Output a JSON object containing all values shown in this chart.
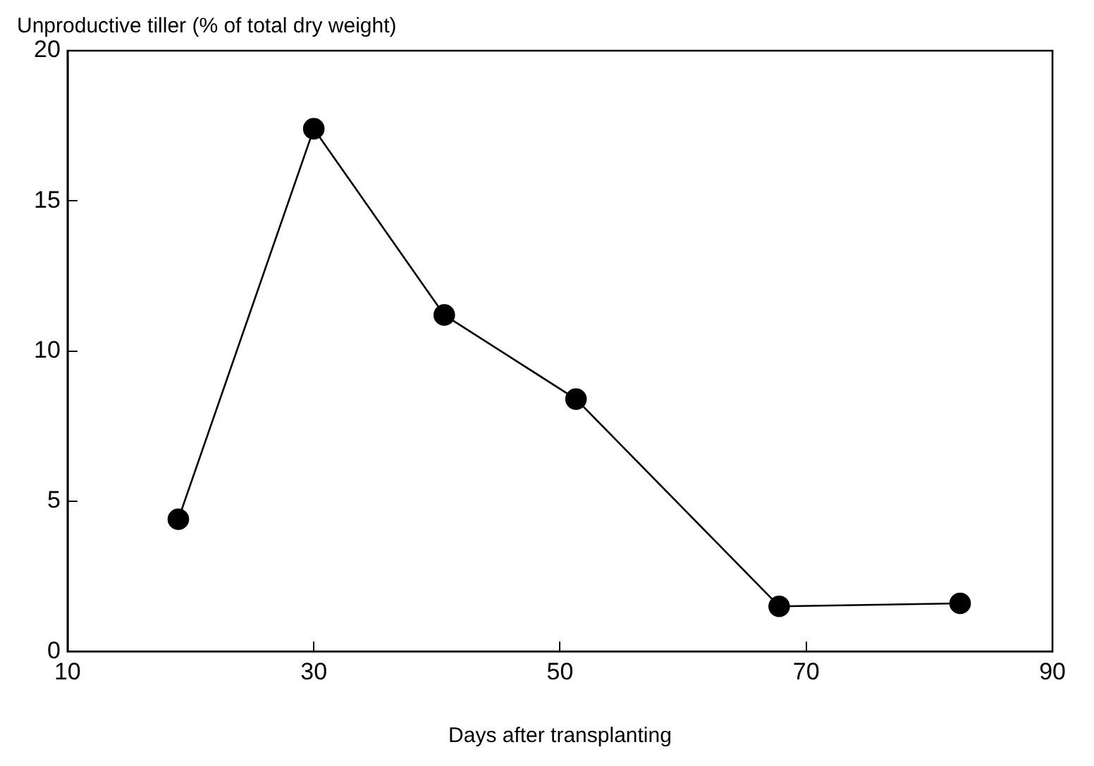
{
  "chart_data": {
    "type": "line",
    "ylabel": "Unproductive tiller (% of total dry weight)",
    "xlabel": "Days after transplanting",
    "x": [
      19,
      30,
      40.6,
      51.3,
      67.8,
      82.5
    ],
    "series": [
      {
        "color": "#000000",
        "values": [
          4.4,
          17.4,
          11.2,
          8.4,
          1.5,
          1.6
        ]
      }
    ],
    "xlim": [
      10,
      90
    ],
    "xticks": [
      10,
      30,
      50,
      70,
      90
    ],
    "ylim": [
      0,
      20
    ],
    "yticks": [
      0,
      5,
      10,
      15,
      20
    ],
    "marker": "circle",
    "line_style": "solid",
    "grid": false,
    "legend": false
  }
}
